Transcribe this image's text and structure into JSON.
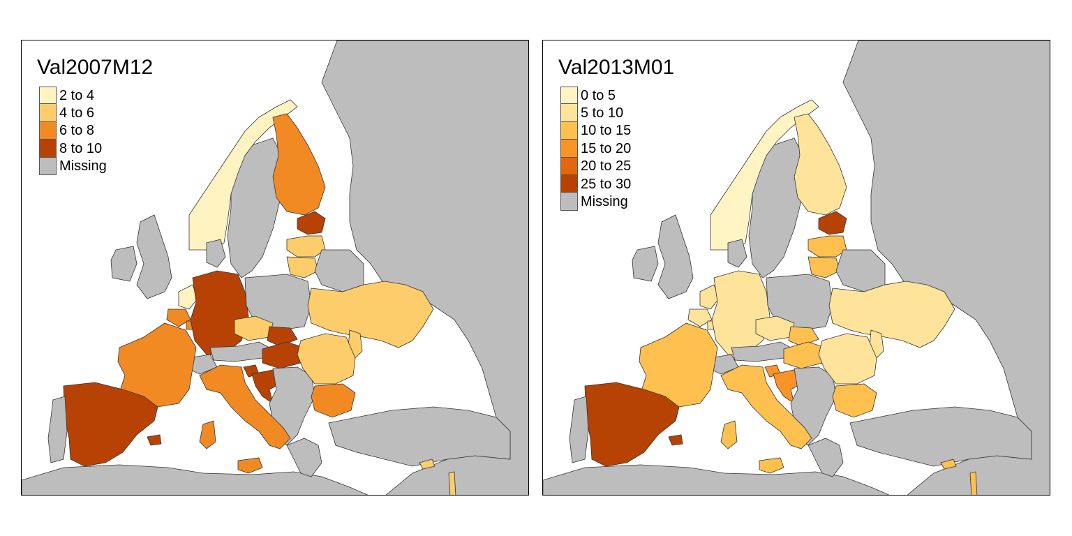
{
  "colors": {
    "missing": "#bdbdbd",
    "sea": "#ffffff",
    "border": "#555555"
  },
  "maps": [
    {
      "title": "Val2007M12",
      "legend": [
        {
          "label": "2 to 4",
          "color": "#fff3c2"
        },
        {
          "label": "4 to 6",
          "color": "#fdcd6b"
        },
        {
          "label": "6 to 8",
          "color": "#f28a24"
        },
        {
          "label": "8 to 10",
          "color": "#b84204"
        },
        {
          "label": "Missing",
          "color": "#bdbdbd"
        }
      ],
      "countries": {
        "norway": 0,
        "finland": 2,
        "estonia": 3,
        "latvia": 1,
        "lithuania": 1,
        "netherlands": 0,
        "belgium": 2,
        "luxembourg": 2,
        "germany": 3,
        "france": 2,
        "spain": 3,
        "portugal": 4,
        "italy": 2,
        "sardinia": 2,
        "sicily": 2,
        "czech": 1,
        "slovakia": 3,
        "hungary": 3,
        "slovenia": 3,
        "croatia": 3,
        "austria": 4,
        "switzerland": 4,
        "poland": 4,
        "ukraine": 1,
        "romania": 1,
        "moldova": 1,
        "bulgaria": 2,
        "cyprus": 1,
        "balearic": 3,
        "sweden": 4,
        "uk": 4,
        "ireland": 4,
        "denmark": 4,
        "belarus": 4,
        "greece": 4,
        "balkans": 4,
        "turkey": 4,
        "russia": 4,
        "africa": 4,
        "israel": 1
      }
    },
    {
      "title": "Val2013M01",
      "legend": [
        {
          "label": "0 to 5",
          "color": "#fff5c4"
        },
        {
          "label": "5 to 10",
          "color": "#fee39a"
        },
        {
          "label": "10 to 15",
          "color": "#fec04f"
        },
        {
          "label": "15 to 20",
          "color": "#fb9427"
        },
        {
          "label": "20 to 25",
          "color": "#e4660e"
        },
        {
          "label": "25 to 30",
          "color": "#b64203"
        },
        {
          "label": "Missing",
          "color": "#bdbdbd"
        }
      ],
      "countries": {
        "norway": 0,
        "finland": 1,
        "estonia": 5,
        "latvia": 2,
        "lithuania": 2,
        "netherlands": 1,
        "belgium": 1,
        "luxembourg": 1,
        "germany": 1,
        "france": 2,
        "spain": 5,
        "portugal": 6,
        "italy": 2,
        "sardinia": 2,
        "sicily": 2,
        "czech": 1,
        "slovakia": 2,
        "hungary": 2,
        "slovenia": 3,
        "croatia": 3,
        "austria": 6,
        "switzerland": 6,
        "poland": 6,
        "ukraine": 1,
        "romania": 1,
        "moldova": 1,
        "bulgaria": 2,
        "cyprus": 2,
        "balearic": 5,
        "sweden": 6,
        "uk": 6,
        "ireland": 6,
        "denmark": 6,
        "belarus": 6,
        "greece": 6,
        "balkans": 6,
        "turkey": 6,
        "russia": 6,
        "africa": 6,
        "israel": 2
      }
    }
  ]
}
